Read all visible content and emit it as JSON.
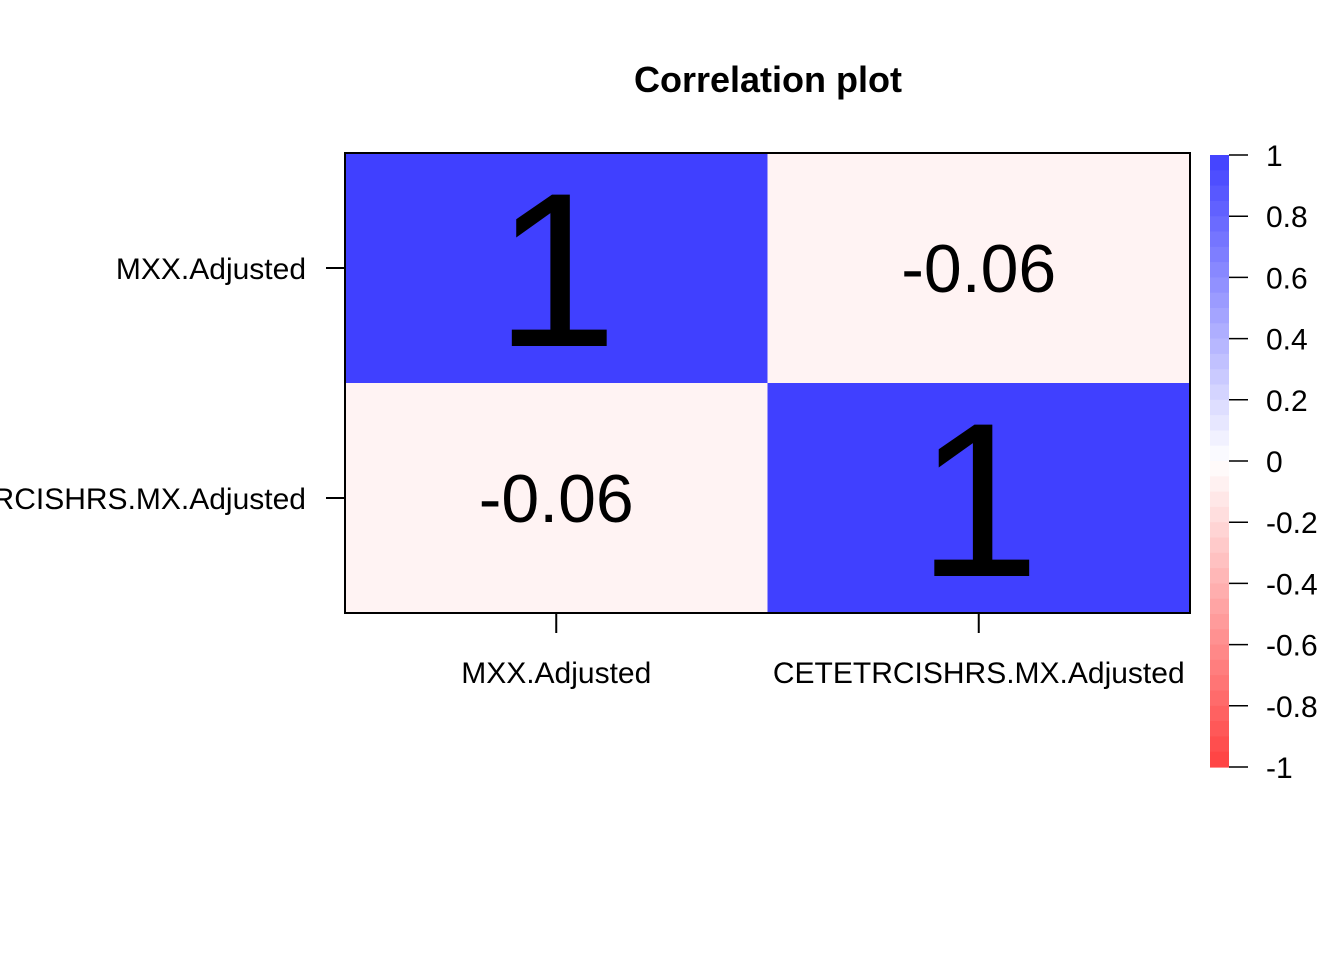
{
  "chart_data": {
    "type": "heatmap",
    "title": "Correlation plot",
    "variables": [
      "MXX.Adjusted",
      "CETETRCISHRS.MX.Adjusted"
    ],
    "row_labels": [
      "MXX.Adjusted",
      "CETETRCISHRS.MX.Adjusted"
    ],
    "col_labels": [
      "MXX.Adjusted",
      "CETETRCISHRS.MX.Adjusted"
    ],
    "matrix": [
      [
        1,
        -0.06
      ],
      [
        -0.06,
        1
      ]
    ],
    "cell_labels": [
      [
        "1",
        "-0.06"
      ],
      [
        "-0.06",
        "1"
      ]
    ],
    "color_scale": {
      "min": -1,
      "max": 1,
      "low_color": "#ff4040",
      "mid_color": "#ffffff",
      "high_color": "#4040ff",
      "tick_values": [
        1,
        0.8,
        0.6,
        0.4,
        0.2,
        0,
        -0.2,
        -0.4,
        -0.6,
        -0.8,
        -1
      ],
      "tick_labels": [
        "1",
        "0.8",
        "0.6",
        "0.4",
        "0.2",
        "0",
        "-0.2",
        "-0.4",
        "-0.6",
        "-0.8",
        "-1"
      ]
    },
    "legend_position": "right",
    "grid": false
  }
}
